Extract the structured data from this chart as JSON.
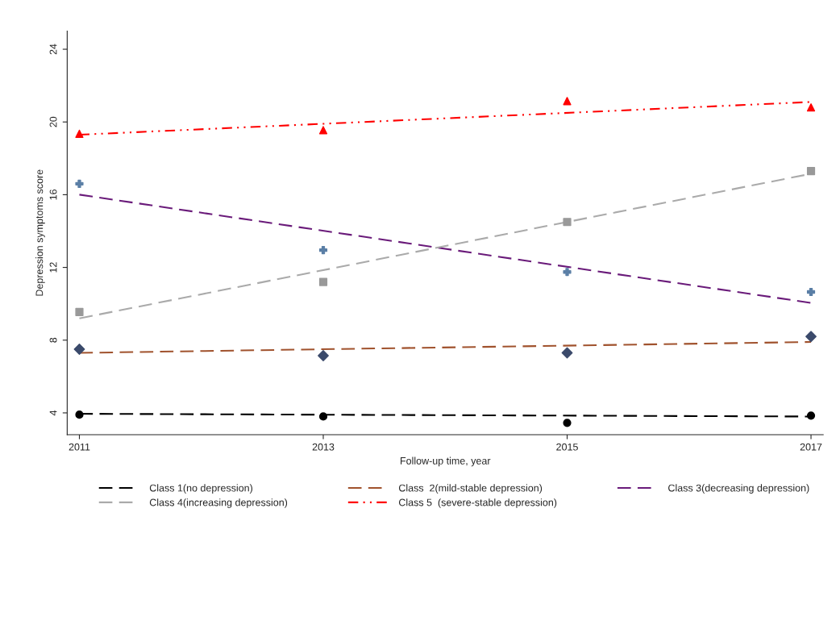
{
  "chart_data": {
    "type": "line",
    "xlabel": "Follow-up time, year",
    "ylabel": "Depression symptoms score",
    "xlim": [
      2010.9,
      2017.1
    ],
    "xticks": [
      2011,
      2013,
      2015,
      2017
    ],
    "ylim": [
      2.8,
      25
    ],
    "yticks": [
      4,
      8,
      12,
      16,
      20,
      24
    ],
    "grid": false,
    "legend": "bottom",
    "series": [
      {
        "name": "Class 1(no depression)",
        "type": "line",
        "color": "#000000",
        "line_style": "dashed",
        "marker": "none",
        "x": [
          2011,
          2017
        ],
        "values": [
          3.95,
          3.8
        ]
      },
      {
        "name": "Class  2(mild-stable depression)",
        "type": "line",
        "color": "#a0522d",
        "line_style": "dashed",
        "marker": "none",
        "x": [
          2011,
          2017
        ],
        "values": [
          7.3,
          7.9
        ]
      },
      {
        "name": "Class 3(decreasing depression)",
        "type": "line",
        "color": "#6a1b7a",
        "line_style": "dashed",
        "marker": "none",
        "x": [
          2011,
          2017
        ],
        "values": [
          16.0,
          10.05
        ]
      },
      {
        "name": "Class 4(increasing depression)",
        "type": "line",
        "color": "#aaaaaa",
        "line_style": "dashed",
        "marker": "none",
        "x": [
          2011,
          2017
        ],
        "values": [
          9.2,
          17.15
        ]
      },
      {
        "name": "Class 5  (severe-stable depression)",
        "type": "line",
        "color": "#ff0000",
        "line_style": "dotted",
        "marker": "none",
        "x": [
          2011,
          2017
        ],
        "values": [
          19.3,
          21.1
        ]
      },
      {
        "type": "scatter",
        "color": "#000000",
        "marker": "circle",
        "x": [
          2011,
          2013,
          2015,
          2017
        ],
        "values": [
          3.9,
          3.8,
          3.45,
          3.85
        ]
      },
      {
        "type": "scatter",
        "color": "#3b4a6b",
        "marker": "diamond",
        "x": [
          2011,
          2013,
          2015,
          2017
        ],
        "values": [
          7.5,
          7.15,
          7.3,
          8.2
        ]
      },
      {
        "type": "scatter",
        "color": "#5b7fa6",
        "marker": "cross",
        "x": [
          2011,
          2013,
          2015,
          2017
        ],
        "values": [
          16.6,
          12.95,
          11.75,
          10.65
        ]
      },
      {
        "type": "scatter",
        "color": "#999999",
        "marker": "square",
        "x": [
          2011,
          2013,
          2015,
          2017
        ],
        "values": [
          9.55,
          11.2,
          14.5,
          17.3
        ]
      },
      {
        "type": "scatter",
        "color": "#ff0000",
        "marker": "triangle",
        "x": [
          2011,
          2013,
          2015,
          2017
        ],
        "values": [
          19.35,
          19.55,
          21.15,
          20.8
        ]
      }
    ]
  }
}
